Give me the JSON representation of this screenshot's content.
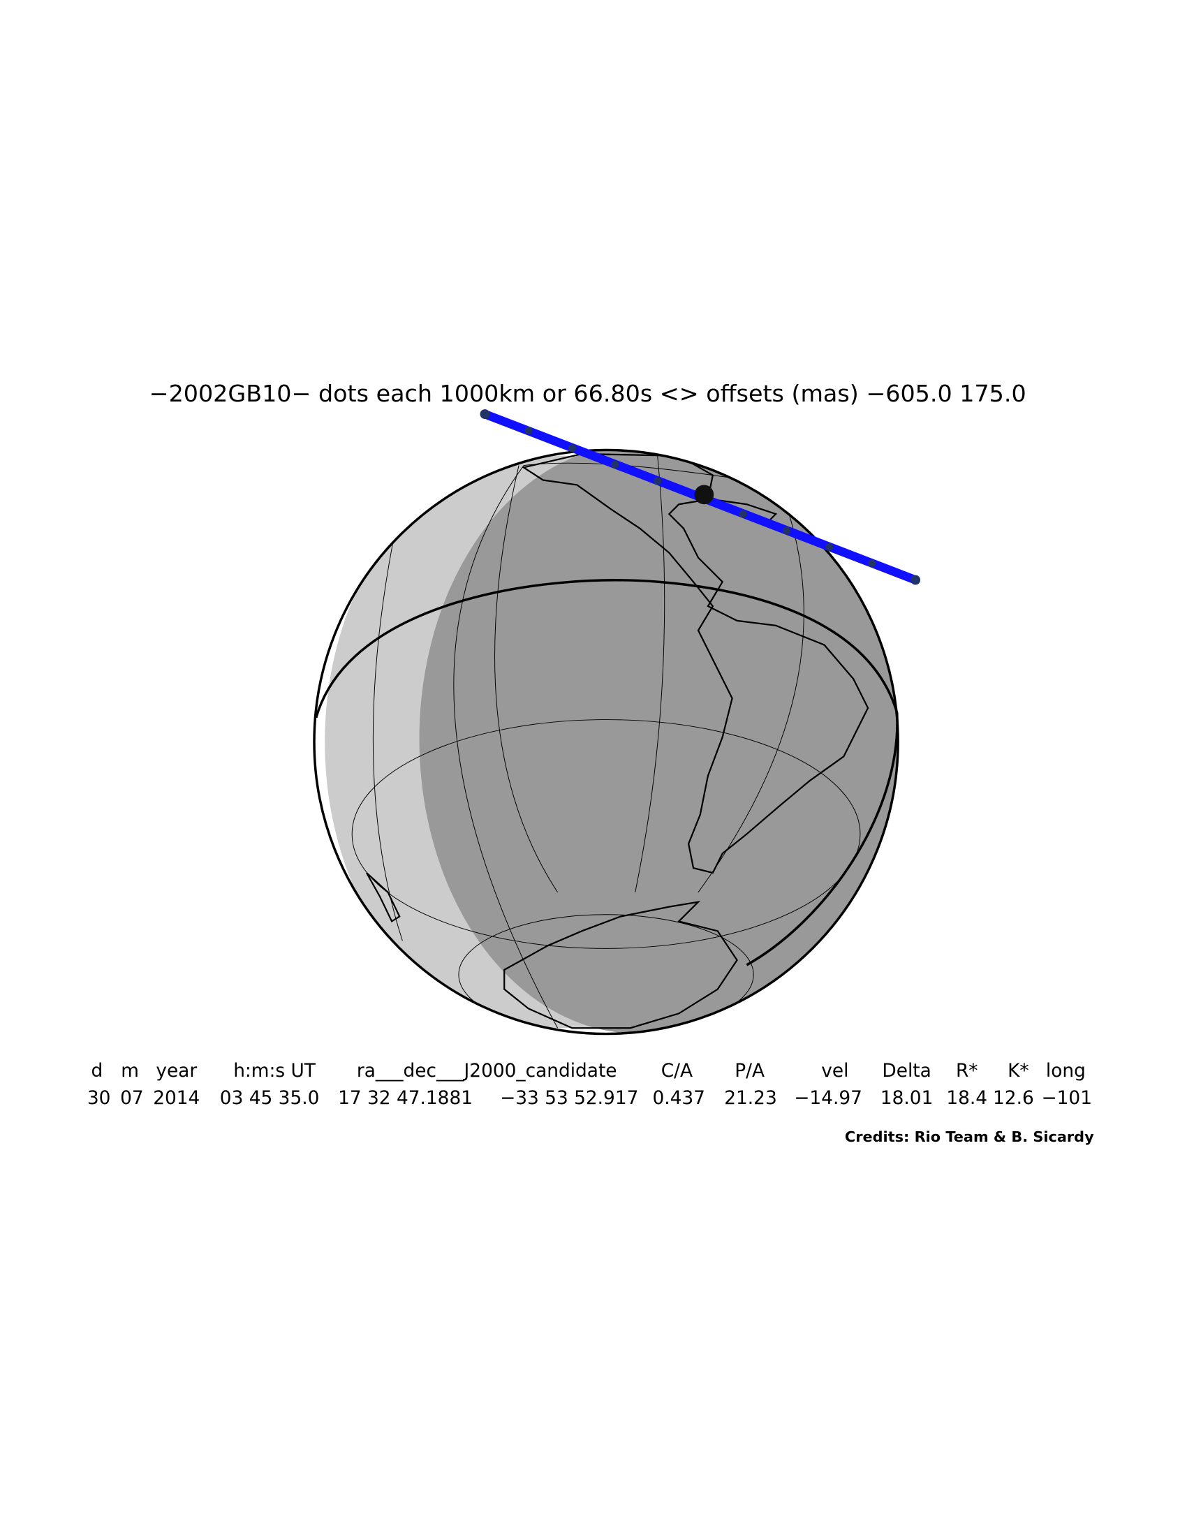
{
  "header": {
    "title": "−2002GB10− dots each 1000km or 66.80s <> offsets (mas) −605.0   175.0"
  },
  "table": {
    "headers": [
      "d",
      "m",
      "year",
      "h:m:s UT",
      "ra___dec___J2000_candidate",
      "C/A",
      "P/A",
      "vel",
      "Delta",
      "R*",
      "K*",
      "long"
    ],
    "values": [
      "30",
      "07",
      "2014",
      "03 45 35.0",
      "17 32 47.1881",
      "−33 53 52.917",
      "0.437",
      "21.23",
      "−14.97",
      "18.01",
      "18.4",
      "12.6",
      "−101"
    ]
  },
  "credits": "Credits: Rio Team & B. Sicardy"
}
